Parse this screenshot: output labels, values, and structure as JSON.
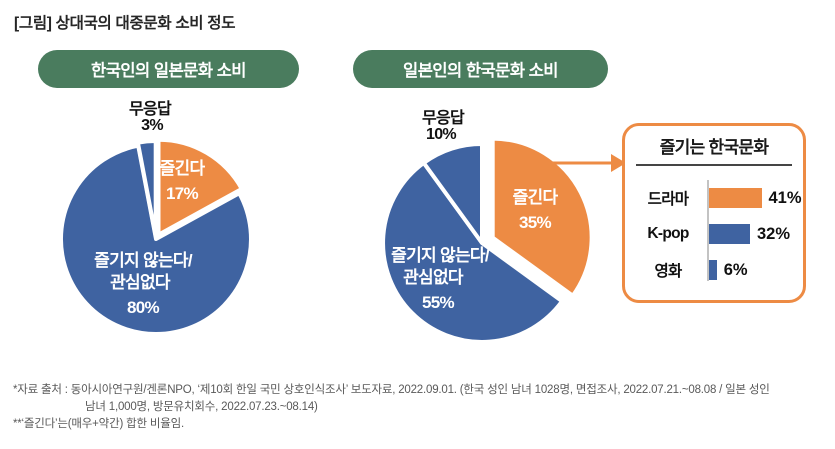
{
  "title": "[그림] 상대국의 대중문화 소비 정도",
  "colors": {
    "blue": "#3f63a1",
    "orange": "#ed8b44",
    "green": "#4a7c5e"
  },
  "pies": [
    {
      "header": "한국인의 일본문화 소비",
      "enjoy_label": "즐긴다",
      "enjoy_pct": "17%",
      "not_enjoy_l1": "즐기지 않는다/",
      "not_enjoy_l2": "관심없다",
      "not_enjoy_pct": "80%",
      "no_answer_label": "무응답",
      "no_answer_pct": "3%"
    },
    {
      "header": "일본인의 한국문화 소비",
      "enjoy_label": "즐긴다",
      "enjoy_pct": "35%",
      "not_enjoy_l1": "즐기지 않는다/",
      "not_enjoy_l2": "관심없다",
      "not_enjoy_pct": "55%",
      "no_answer_label": "무응답",
      "no_answer_pct": "10%"
    }
  ],
  "callout": {
    "title": "즐기는 한국문화",
    "bars": [
      {
        "label": "드라마",
        "value": 41,
        "pct": "41%",
        "color": "orange"
      },
      {
        "label": "K-pop",
        "value": 32,
        "pct": "32%",
        "color": "blue"
      },
      {
        "label": "영화",
        "value": 6,
        "pct": "6%",
        "color": "blue"
      }
    ]
  },
  "footnotes": {
    "line1": "*자료 출처 : 동아시아연구원/겐론NPO, ‘제10회 한일 국민 상호인식조사’ 보도자료, 2022.09.01.  (한국 성인 남녀 1028명, 면접조사, 2022.07.21.~08.08 / 일본 성인",
    "line2": "남녀 1,000명, 방문유치회수, 2022.07.23.~08.14)",
    "line3": "**‘즐긴다’는(매우+약간) 합한 비율임."
  },
  "chart_data": [
    {
      "type": "pie",
      "title": "한국인의 일본문화 소비",
      "labels": [
        "즐긴다",
        "즐기지 않는다/관심없다",
        "무응답"
      ],
      "values": [
        17,
        80,
        3
      ],
      "colors": [
        "orange",
        "blue",
        "blue"
      ],
      "start_angle": 0,
      "direction": "clockwise",
      "legend": "labels drawn on slices; 무응답 labeled above pie"
    },
    {
      "type": "pie",
      "title": "일본인의 한국문화 소비",
      "labels": [
        "즐긴다",
        "즐기지 않는다/관심없다",
        "무응답"
      ],
      "values": [
        35,
        55,
        10
      ],
      "colors": [
        "orange",
        "blue",
        "blue"
      ],
      "start_angle": 0,
      "direction": "clockwise",
      "exploded_slice": "즐긴다",
      "annotation": "arrow from 즐긴다 slice to callout bar chart"
    },
    {
      "type": "bar",
      "orientation": "horizontal",
      "title": "즐기는 한국문화",
      "categories": [
        "드라마",
        "K-pop",
        "영화"
      ],
      "values": [
        41,
        32,
        6
      ],
      "value_suffix": "%",
      "colors": [
        "orange",
        "blue",
        "blue"
      ],
      "xlim": [
        0,
        50
      ],
      "grid": false,
      "legend_position": "none"
    }
  ]
}
